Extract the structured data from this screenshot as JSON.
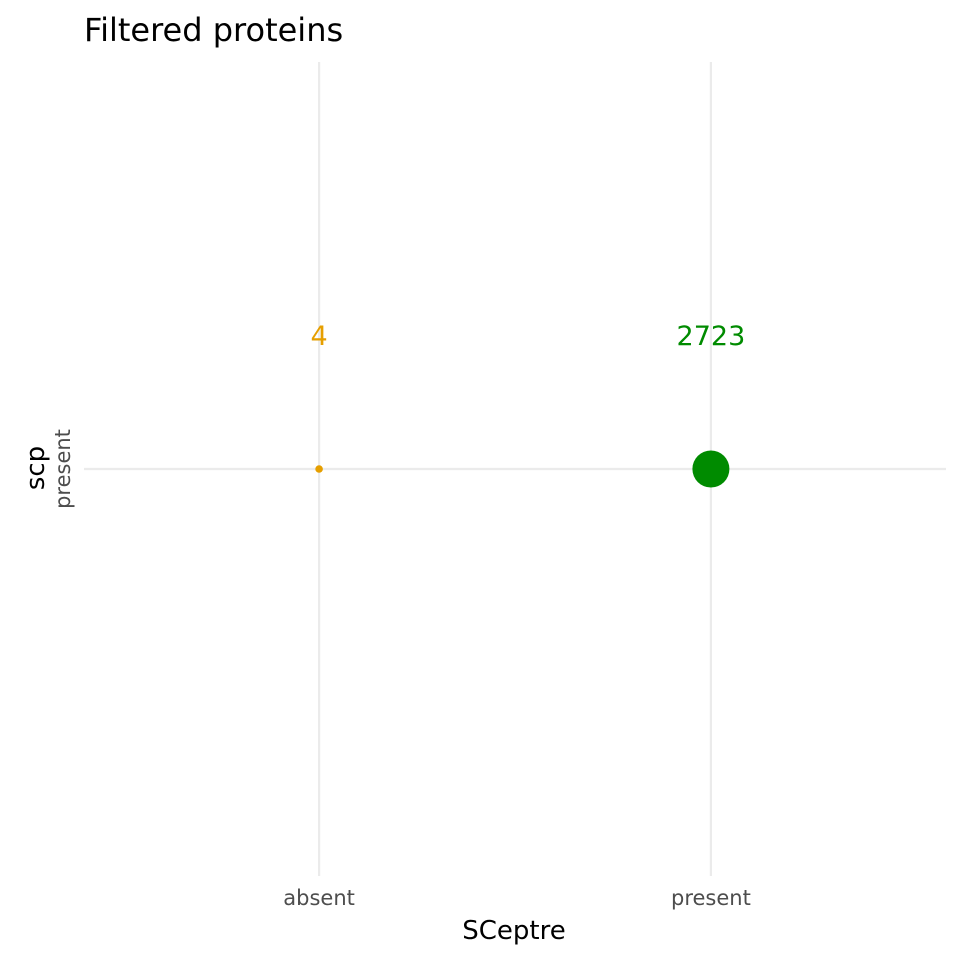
{
  "chart_data": {
    "type": "scatter",
    "title": "Filtered proteins",
    "xlabel": "SCeptre",
    "ylabel": "scp",
    "x_categories": [
      "absent",
      "present"
    ],
    "y_categories": [
      "present"
    ],
    "grid": true,
    "points": [
      {
        "x": "absent",
        "y": "present",
        "count": 4,
        "color": "#E69F00"
      },
      {
        "x": "present",
        "y": "present",
        "count": 2723,
        "color": "#008B00"
      }
    ]
  }
}
